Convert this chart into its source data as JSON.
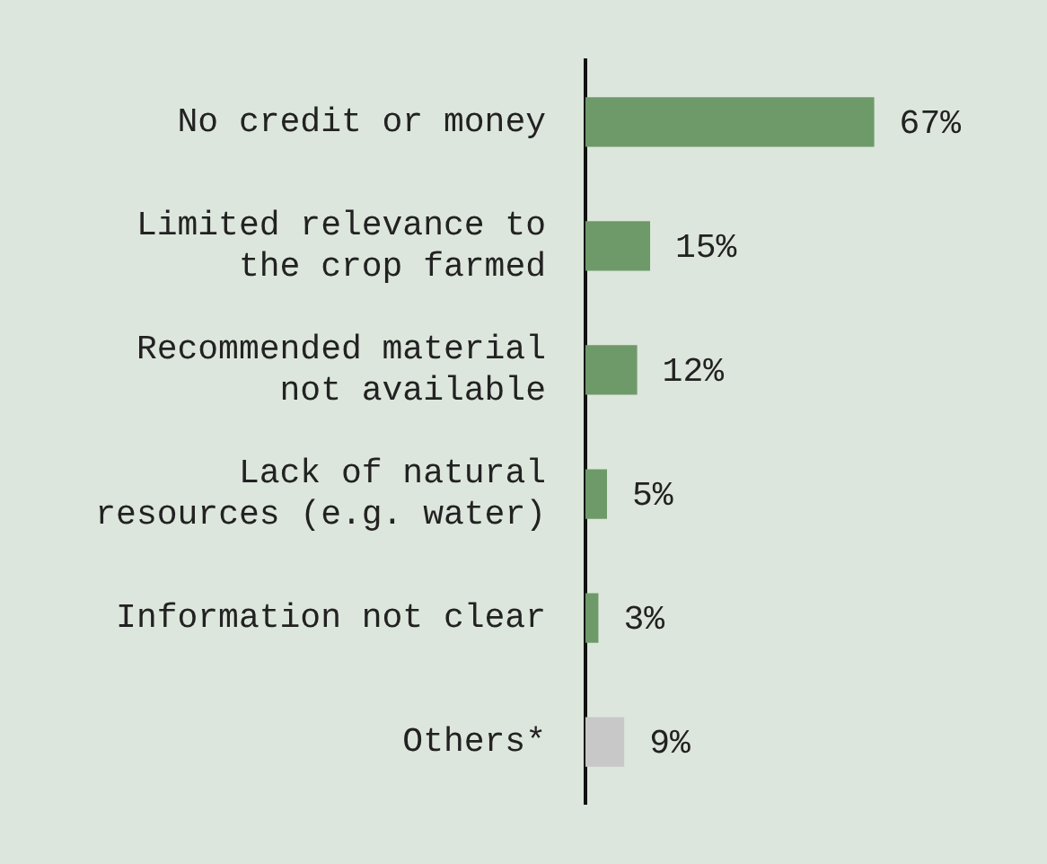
{
  "chart_data": {
    "type": "bar",
    "orientation": "horizontal",
    "categories": [
      "No credit or money",
      "Limited relevance to the crop farmed",
      "Recommended material not available",
      "Lack of natural resources (e.g. water)",
      "Information not clear",
      "Others*"
    ],
    "values": [
      67,
      15,
      12,
      5,
      3,
      9
    ],
    "value_labels": [
      "67%",
      "15%",
      "12%",
      "5%",
      "3%",
      "9%"
    ],
    "colors": [
      "#6e9a6a",
      "#6e9a6a",
      "#6e9a6a",
      "#6e9a6a",
      "#6e9a6a",
      "#c8c8c8"
    ],
    "grid": false,
    "legend": false
  }
}
